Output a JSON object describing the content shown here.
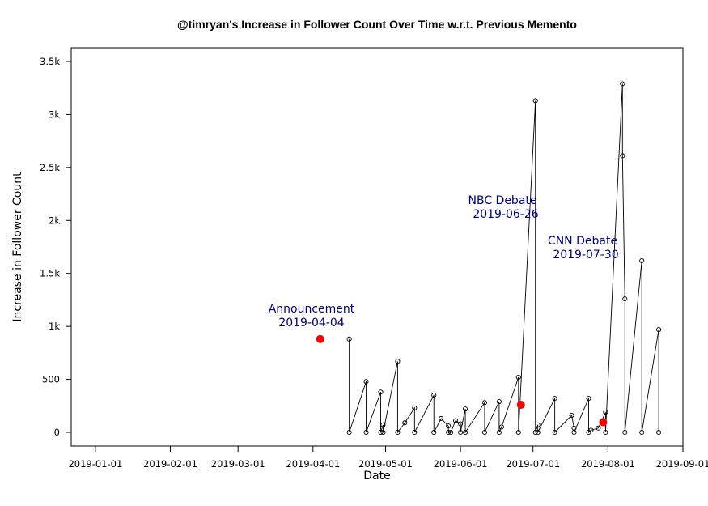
{
  "chart_data": {
    "type": "line",
    "title": "@timryan's Increase in Follower Count Over Time w.r.t. Previous Memento",
    "xlabel": "Date",
    "ylabel": "Increase in Follower Count",
    "xlim": [
      "2018-12-22",
      "2019-09-01"
    ],
    "ylim": [
      -130,
      3630
    ],
    "x_ticks": [
      "2019-01-01",
      "2019-02-01",
      "2019-03-01",
      "2019-04-01",
      "2019-05-01",
      "2019-06-01",
      "2019-07-01",
      "2019-08-01",
      "2019-09-01"
    ],
    "y_ticks": [
      0,
      500,
      1000,
      1500,
      2000,
      2500,
      3000,
      3500
    ],
    "y_tick_labels": [
      "0",
      "500",
      "1k",
      "1.5k",
      "2k",
      "2.5k",
      "3k",
      "3.5k"
    ],
    "grid": false,
    "colors": {
      "line": "#000000",
      "event_marker": "#ff0000",
      "annotation": "#000080"
    },
    "series": [
      {
        "values": [
          {
            "x": "2019-04-16",
            "y": 880
          },
          {
            "x": "2019-04-16",
            "y": 0
          },
          {
            "x": "2019-04-23",
            "y": 480
          },
          {
            "x": "2019-04-23",
            "y": 0
          },
          {
            "x": "2019-04-29",
            "y": 380
          },
          {
            "x": "2019-04-29",
            "y": 0
          },
          {
            "x": "2019-04-30",
            "y": 70
          },
          {
            "x": "2019-04-30",
            "y": 0
          },
          {
            "x": "2019-05-06",
            "y": 670
          },
          {
            "x": "2019-05-06",
            "y": 0
          },
          {
            "x": "2019-05-09",
            "y": 90
          },
          {
            "x": "2019-05-13",
            "y": 230
          },
          {
            "x": "2019-05-13",
            "y": 0
          },
          {
            "x": "2019-05-21",
            "y": 350
          },
          {
            "x": "2019-05-21",
            "y": 0
          },
          {
            "x": "2019-05-24",
            "y": 130
          },
          {
            "x": "2019-05-27",
            "y": 60
          },
          {
            "x": "2019-05-27",
            "y": 0
          },
          {
            "x": "2019-05-28",
            "y": 0
          },
          {
            "x": "2019-05-30",
            "y": 110
          },
          {
            "x": "2019-06-01",
            "y": 80
          },
          {
            "x": "2019-06-01",
            "y": 0
          },
          {
            "x": "2019-06-03",
            "y": 220
          },
          {
            "x": "2019-06-03",
            "y": 0
          },
          {
            "x": "2019-06-11",
            "y": 280
          },
          {
            "x": "2019-06-11",
            "y": 0
          },
          {
            "x": "2019-06-17",
            "y": 290
          },
          {
            "x": "2019-06-17",
            "y": 0
          },
          {
            "x": "2019-06-18",
            "y": 50
          },
          {
            "x": "2019-06-25",
            "y": 520
          },
          {
            "x": "2019-06-25",
            "y": 0
          },
          {
            "x": "2019-07-02",
            "y": 3130
          },
          {
            "x": "2019-07-02",
            "y": 0
          },
          {
            "x": "2019-07-03",
            "y": 70
          },
          {
            "x": "2019-07-03",
            "y": 0
          },
          {
            "x": "2019-07-10",
            "y": 320
          },
          {
            "x": "2019-07-10",
            "y": 0
          },
          {
            "x": "2019-07-17",
            "y": 160
          },
          {
            "x": "2019-07-18",
            "y": 40
          },
          {
            "x": "2019-07-18",
            "y": 0
          },
          {
            "x": "2019-07-24",
            "y": 320
          },
          {
            "x": "2019-07-24",
            "y": 0
          },
          {
            "x": "2019-07-25",
            "y": 20
          },
          {
            "x": "2019-07-28",
            "y": 40
          },
          {
            "x": "2019-07-31",
            "y": 190
          },
          {
            "x": "2019-07-31",
            "y": 0
          },
          {
            "x": "2019-08-07",
            "y": 3290
          },
          {
            "x": "2019-08-07",
            "y": 2610
          },
          {
            "x": "2019-08-08",
            "y": 1260
          },
          {
            "x": "2019-08-08",
            "y": 0
          },
          {
            "x": "2019-08-15",
            "y": 1620
          },
          {
            "x": "2019-08-15",
            "y": 0
          },
          {
            "x": "2019-08-22",
            "y": 970
          },
          {
            "x": "2019-08-22",
            "y": 0
          }
        ]
      }
    ],
    "events": [
      {
        "label": "Announcement",
        "date_label": "2019-04-04",
        "x": "2019-04-04",
        "y": 880
      },
      {
        "label": "NBC Debate",
        "date_label": "2019-06-26",
        "x": "2019-06-26",
        "y": 260
      },
      {
        "label": "CNN Debate",
        "date_label": "2019-07-30",
        "x": "2019-07-30",
        "y": 95
      }
    ]
  }
}
